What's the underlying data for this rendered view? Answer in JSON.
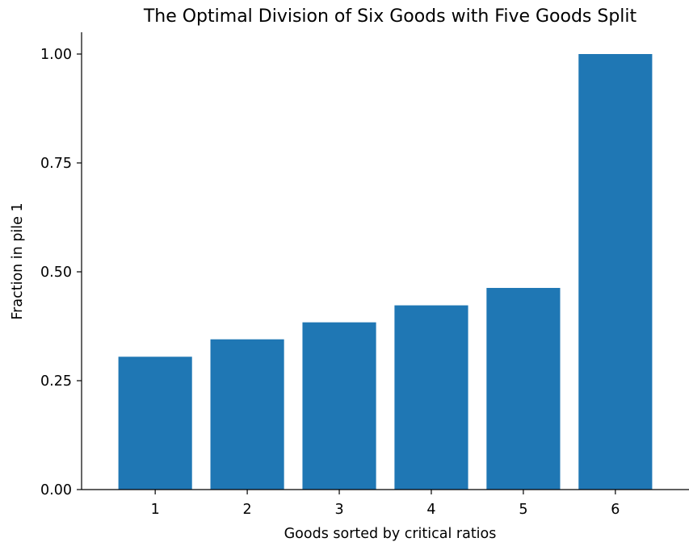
{
  "chart_data": {
    "type": "bar",
    "title": "The Optimal Division of Six Goods with Five Goods Split",
    "xlabel": "Goods sorted by critical ratios",
    "ylabel": "Fraction in pile 1",
    "categories": [
      "1",
      "2",
      "3",
      "4",
      "5",
      "6"
    ],
    "values": [
      0.305,
      0.345,
      0.384,
      0.423,
      0.463,
      1.0
    ],
    "ylim": [
      0,
      1.05
    ],
    "yticks": [
      "0.00",
      "0.25",
      "0.50",
      "0.75",
      "1.00"
    ],
    "bar_color": "#1f77b4",
    "grid": false
  }
}
